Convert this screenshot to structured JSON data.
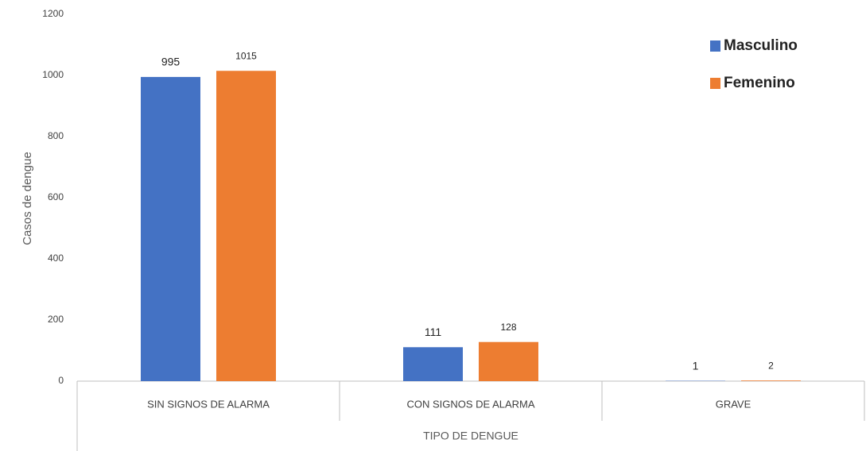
{
  "chart_data": {
    "type": "bar",
    "x_label": "TIPO DE DENGUE",
    "y_label": "Casos de dengue",
    "categories": [
      "SIN SIGNOS DE ALARMA",
      "CON SIGNOS DE ALARMA",
      "GRAVE"
    ],
    "series": [
      {
        "name": "Masculino",
        "color": "#4472c4",
        "values": [
          995,
          111,
          1
        ]
      },
      {
        "name": "Femenino",
        "color": "#ed7d31",
        "values": [
          1015,
          128,
          2
        ]
      }
    ],
    "ylim": [
      0,
      1200
    ],
    "yticks": [
      0,
      200,
      400,
      600,
      800,
      1000,
      1200
    ],
    "grid": false,
    "legend": "top-right"
  }
}
